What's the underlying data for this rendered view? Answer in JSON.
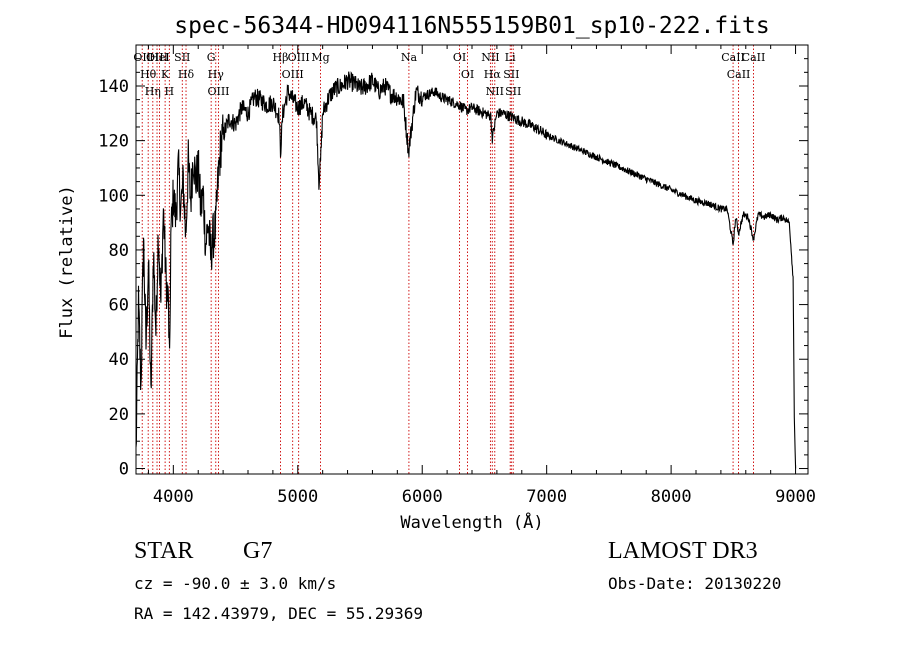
{
  "chart_data": {
    "type": "line",
    "title": "spec-56344-HD094116N555159B01_sp10-222.fits",
    "xlabel": "Wavelength (Å)",
    "ylabel": "Flux (relative)",
    "xlim": [
      3700,
      9100
    ],
    "ylim": [
      -2,
      155
    ],
    "xticks": [
      4000,
      5000,
      6000,
      7000,
      8000,
      9000
    ],
    "yticks": [
      0,
      20,
      40,
      60,
      80,
      100,
      120,
      140
    ],
    "grid": false,
    "series": [
      {
        "name": "spectrum",
        "x": [
          3700,
          3720,
          3740,
          3760,
          3780,
          3800,
          3820,
          3840,
          3860,
          3880,
          3900,
          3920,
          3940,
          3960,
          3970,
          3980,
          4000,
          4020,
          4040,
          4060,
          4080,
          4100,
          4120,
          4140,
          4160,
          4180,
          4200,
          4220,
          4240,
          4260,
          4280,
          4300,
          4320,
          4340,
          4360,
          4380,
          4400,
          4450,
          4500,
          4550,
          4600,
          4650,
          4700,
          4750,
          4800,
          4850,
          4861,
          4880,
          4920,
          4960,
          5000,
          5050,
          5100,
          5150,
          5170,
          5183,
          5200,
          5250,
          5300,
          5350,
          5400,
          5450,
          5500,
          5550,
          5600,
          5650,
          5700,
          5750,
          5800,
          5850,
          5890,
          5896,
          5950,
          6000,
          6050,
          6100,
          6150,
          6200,
          6250,
          6300,
          6350,
          6400,
          6450,
          6500,
          6550,
          6563,
          6600,
          6650,
          6700,
          6750,
          6800,
          6900,
          7000,
          7100,
          7200,
          7300,
          7400,
          7500,
          7600,
          7700,
          7800,
          7900,
          8000,
          8100,
          8200,
          8300,
          8400,
          8450,
          8498,
          8520,
          8542,
          8580,
          8620,
          8662,
          8700,
          8750,
          8800,
          8850,
          8900,
          8950,
          8980,
          8990,
          9000
        ],
        "values": [
          5,
          60,
          30,
          85,
          45,
          75,
          25,
          80,
          50,
          88,
          60,
          95,
          70,
          60,
          35,
          85,
          100,
          92,
          110,
          95,
          105,
          85,
          112,
          98,
          115,
          105,
          110,
          95,
          100,
          82,
          90,
          78,
          85,
          88,
          106,
          118,
          122,
          128,
          126,
          132,
          130,
          136,
          135,
          133,
          134,
          129,
          116,
          130,
          138,
          135,
          132,
          134,
          130,
          128,
          105,
          112,
          130,
          136,
          139,
          140,
          142,
          141,
          139,
          140,
          142,
          138,
          140,
          137,
          136,
          134,
          116,
          118,
          138,
          136,
          137,
          138,
          136,
          135,
          134,
          133,
          131,
          132,
          131,
          130,
          129,
          121,
          130,
          130,
          129,
          128,
          127,
          125,
          122,
          120,
          118,
          116,
          114,
          112,
          110,
          108,
          106,
          104,
          102,
          100,
          98,
          97,
          95,
          95,
          82,
          92,
          86,
          93,
          92,
          84,
          93,
          92,
          93,
          91,
          92,
          90,
          70,
          20,
          0
        ]
      }
    ],
    "line_markers": [
      {
        "wavelength": 3750,
        "label": "OII"
      },
      {
        "wavelength": 3798,
        "label": "Hθ"
      },
      {
        "wavelength": 3835,
        "label": "Hη"
      },
      {
        "wavelength": 3869,
        "label": "OIII"
      },
      {
        "wavelength": 3889,
        "label": "HeI"
      },
      {
        "wavelength": 3934,
        "label": "K"
      },
      {
        "wavelength": 3968,
        "label": "H"
      },
      {
        "wavelength": 4072,
        "label": "SII"
      },
      {
        "wavelength": 4102,
        "label": "Hδ"
      },
      {
        "wavelength": 4304,
        "label": "G"
      },
      {
        "wavelength": 4341,
        "label": "Hγ"
      },
      {
        "wavelength": 4363,
        "label": "OIII"
      },
      {
        "wavelength": 4861,
        "label": "Hβ"
      },
      {
        "wavelength": 4959,
        "label": "OIII"
      },
      {
        "wavelength": 5007,
        "label": "OIII"
      },
      {
        "wavelength": 5183,
        "label": "Mg"
      },
      {
        "wavelength": 5893,
        "label": "Na"
      },
      {
        "wavelength": 6300,
        "label": "OI"
      },
      {
        "wavelength": 6364,
        "label": "OI"
      },
      {
        "wavelength": 6548,
        "label": "NII"
      },
      {
        "wavelength": 6563,
        "label": "Hα"
      },
      {
        "wavelength": 6583,
        "label": "NII"
      },
      {
        "wavelength": 6707,
        "label": "Li"
      },
      {
        "wavelength": 6716,
        "label": "SII"
      },
      {
        "wavelength": 6731,
        "label": "SII"
      },
      {
        "wavelength": 8498,
        "label": "CaII"
      },
      {
        "wavelength": 8542,
        "label": "CaII"
      },
      {
        "wavelength": 8662,
        "label": "CaII"
      }
    ]
  },
  "info": {
    "class": "STAR",
    "subclass": "G7",
    "survey": "LAMOST DR3",
    "cz": "cz = -90.0 ± 3.0 km/s",
    "obs_date": "Obs-Date: 20130220",
    "coords": "RA = 142.43979, DEC =  55.29369"
  },
  "colors": {
    "spectrum": "#000000",
    "marker": "#cc0000",
    "axes": "#000000"
  }
}
